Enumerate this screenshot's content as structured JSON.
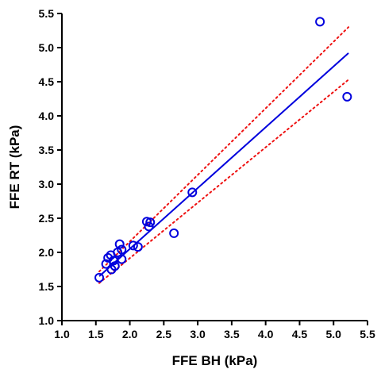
{
  "chart_data": {
    "type": "scatter",
    "xlabel": "FFE BH (kPa)",
    "ylabel": "FFE RT (kPa)",
    "xlim": [
      1.0,
      5.5
    ],
    "ylim": [
      1.0,
      5.5
    ],
    "xticks": [
      "1.0",
      "1.5",
      "2.0",
      "2.5",
      "3.0",
      "3.5",
      "4.0",
      "4.5",
      "5.0",
      "5.5"
    ],
    "yticks": [
      "1.0",
      "1.5",
      "2.0",
      "2.5",
      "3.0",
      "3.5",
      "4.0",
      "4.5",
      "5.0",
      "5.5"
    ],
    "grid": false,
    "colors": {
      "points": "#0000dd",
      "fit": "#0000dd",
      "ci": "#ee1111",
      "axis": "#000000"
    },
    "points": [
      {
        "x": 1.55,
        "y": 1.63
      },
      {
        "x": 1.65,
        "y": 1.83
      },
      {
        "x": 1.68,
        "y": 1.92
      },
      {
        "x": 1.72,
        "y": 1.96
      },
      {
        "x": 1.73,
        "y": 1.75
      },
      {
        "x": 1.76,
        "y": 1.88
      },
      {
        "x": 1.78,
        "y": 1.8
      },
      {
        "x": 1.82,
        "y": 2.0
      },
      {
        "x": 1.85,
        "y": 2.12
      },
      {
        "x": 1.88,
        "y": 1.9
      },
      {
        "x": 1.88,
        "y": 2.04
      },
      {
        "x": 2.05,
        "y": 2.1
      },
      {
        "x": 2.12,
        "y": 2.08
      },
      {
        "x": 2.25,
        "y": 2.45
      },
      {
        "x": 2.28,
        "y": 2.38
      },
      {
        "x": 2.3,
        "y": 2.44
      },
      {
        "x": 2.65,
        "y": 2.28
      },
      {
        "x": 2.92,
        "y": 2.88
      },
      {
        "x": 4.8,
        "y": 5.38
      },
      {
        "x": 5.2,
        "y": 4.28
      }
    ],
    "fit_line": {
      "x": [
        1.55,
        5.22
      ],
      "y": [
        1.65,
        4.92
      ]
    },
    "ci_upper": {
      "x": [
        1.55,
        5.22
      ],
      "y": [
        1.72,
        5.3
      ]
    },
    "ci_lower": {
      "x": [
        1.55,
        5.22
      ],
      "y": [
        1.55,
        4.53
      ]
    }
  }
}
